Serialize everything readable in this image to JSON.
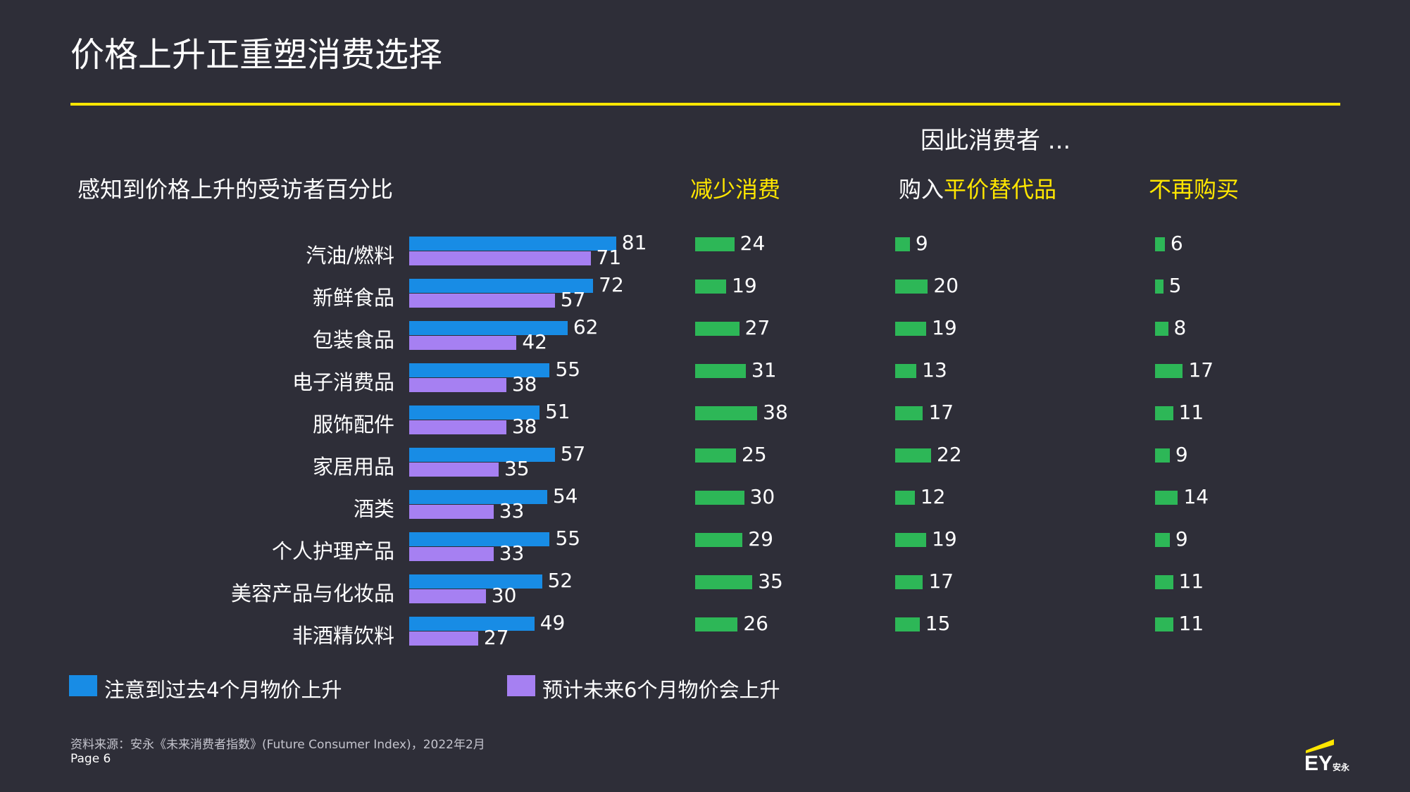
{
  "title": "价格上升正重塑消费选择",
  "subtitle_therefore": "因此消费者 ...",
  "left_header": "感知到价格上升的受访者百分比",
  "col_headers": {
    "reduce": "减少消费",
    "substitute_prefix": "购入",
    "substitute_highlight": "平价替代品",
    "stop": "不再购买"
  },
  "legend": [
    {
      "label": "注意到过去4个月物价上升",
      "color": "#188ce5"
    },
    {
      "label": "预计未来6个月物价会上升",
      "color": "#a680f2"
    }
  ],
  "footer": {
    "source": "资料来源：安永《未来消费者指数》(Future Consumer Index)，2022年2月",
    "page": "Page 6",
    "logo_text": "EY",
    "logo_sub": "安永"
  },
  "colors": {
    "background": "#2e2e38",
    "accent_yellow": "#ffe600",
    "blue": "#188ce5",
    "purple": "#a680f2",
    "green": "#2db757"
  },
  "chart_data": [
    {
      "type": "bar",
      "orientation": "horizontal",
      "title": "感知到价格上升的受访者百分比",
      "categories": [
        "汽油/燃料",
        "新鲜食品",
        "包装食品",
        "电子消费品",
        "服饰配件",
        "家居用品",
        "酒类",
        "个人护理产品",
        "美容产品与化妆品",
        "非酒精饮料"
      ],
      "series": [
        {
          "name": "注意到过去4个月物价上升",
          "values": [
            81,
            72,
            62,
            55,
            51,
            57,
            54,
            55,
            52,
            49
          ]
        },
        {
          "name": "预计未来6个月物价会上升",
          "values": [
            71,
            57,
            42,
            38,
            38,
            35,
            33,
            33,
            30,
            27
          ]
        }
      ],
      "legend": "bottom"
    },
    {
      "type": "bar",
      "orientation": "horizontal",
      "title": "减少消费",
      "categories": [
        "汽油/燃料",
        "新鲜食品",
        "包装食品",
        "电子消费品",
        "服饰配件",
        "家居用品",
        "酒类",
        "个人护理产品",
        "美容产品与化妆品",
        "非酒精饮料"
      ],
      "values": [
        24,
        19,
        27,
        31,
        38,
        25,
        30,
        29,
        35,
        26
      ]
    },
    {
      "type": "bar",
      "orientation": "horizontal",
      "title": "购入平价替代品",
      "categories": [
        "汽油/燃料",
        "新鲜食品",
        "包装食品",
        "电子消费品",
        "服饰配件",
        "家居用品",
        "酒类",
        "个人护理产品",
        "美容产品与化妆品",
        "非酒精饮料"
      ],
      "values": [
        9,
        20,
        19,
        13,
        17,
        22,
        12,
        19,
        17,
        15
      ]
    },
    {
      "type": "bar",
      "orientation": "horizontal",
      "title": "不再购买",
      "categories": [
        "汽油/燃料",
        "新鲜食品",
        "包装食品",
        "电子消费品",
        "服饰配件",
        "家居用品",
        "酒类",
        "个人护理产品",
        "美容产品与化妆品",
        "非酒精饮料"
      ],
      "values": [
        6,
        5,
        8,
        17,
        11,
        9,
        14,
        9,
        11,
        11
      ]
    }
  ]
}
